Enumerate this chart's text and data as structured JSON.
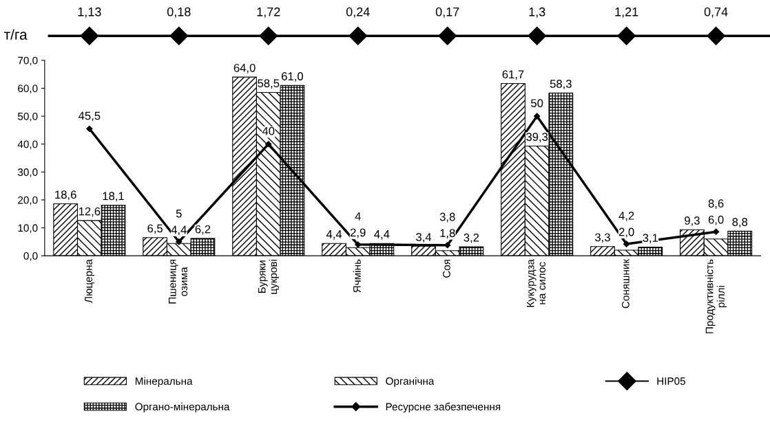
{
  "chart_data": [
    {
      "type": "other",
      "ylabel": "т/га",
      "series": [
        {
          "name": "НІР05",
          "color": "#000000",
          "type": "line",
          "marker": "diamond",
          "values": [
            1.13,
            0.18,
            1.72,
            0.24,
            0.17,
            1.3,
            1.21,
            0.74
          ],
          "value_labels": [
            "1,13",
            "0,18",
            "1,72",
            "0,24",
            "0,17",
            "1,3",
            "1,21",
            "0,74"
          ]
        }
      ]
    },
    {
      "type": "bar",
      "categories": [
        "Люцерна",
        "Пшениця\nозима",
        "Буряки\nцукрові",
        "Ячмінь",
        "Соя",
        "Кукурудза\nна силос",
        "Соняшник",
        "Продуктивність\nріллі"
      ],
      "ylim": [
        0,
        70
      ],
      "yticks": [
        {
          "value": 0,
          "label": "0,0"
        },
        {
          "value": 10,
          "label": "10,0"
        },
        {
          "value": 20,
          "label": "20,0"
        },
        {
          "value": 30,
          "label": "30,0"
        },
        {
          "value": 40,
          "label": "40,0"
        },
        {
          "value": 50,
          "label": "50,0"
        },
        {
          "value": 60,
          "label": "60,0"
        },
        {
          "value": 70,
          "label": "70,0"
        }
      ],
      "legend": "bottom",
      "grid": false,
      "series": [
        {
          "name": "Мінеральна",
          "color": "#000000",
          "values": [
            18.6,
            6.5,
            64.0,
            4.4,
            3.4,
            61.7,
            3.3,
            9.3
          ],
          "value_labels": [
            "18,6",
            "6,5",
            "64,0",
            "4,4",
            "3,4",
            "61,7",
            "3,3",
            "9,3"
          ]
        },
        {
          "name": "Органічна",
          "color": "#000000",
          "values": [
            12.6,
            4.4,
            58.5,
            2.9,
            1.8,
            39.3,
            2.0,
            6.0
          ],
          "value_labels": [
            "12,6",
            "4,4",
            "58,5",
            "2,9",
            "1,8",
            "39,3",
            "2,0",
            "6,0"
          ]
        },
        {
          "name": "Органо-мінеральна",
          "color": "#000000",
          "values": [
            18.1,
            6.2,
            61.0,
            4.4,
            3.2,
            58.3,
            3.1,
            8.8
          ],
          "value_labels": [
            "18,1",
            "6,2",
            "61,0",
            "4,4",
            "3,2",
            "58,3",
            "3,1",
            "8,8"
          ]
        },
        {
          "name": "Ресурсне забезпечення",
          "color": "#000000",
          "type": "line",
          "marker": "diamond",
          "values": [
            45.5,
            5,
            40,
            4,
            3.8,
            50,
            4.2,
            8.6
          ],
          "value_labels": [
            "45,5",
            "5",
            "40",
            "4",
            "3,8",
            "50",
            "4,2",
            "8,6"
          ]
        }
      ]
    }
  ]
}
